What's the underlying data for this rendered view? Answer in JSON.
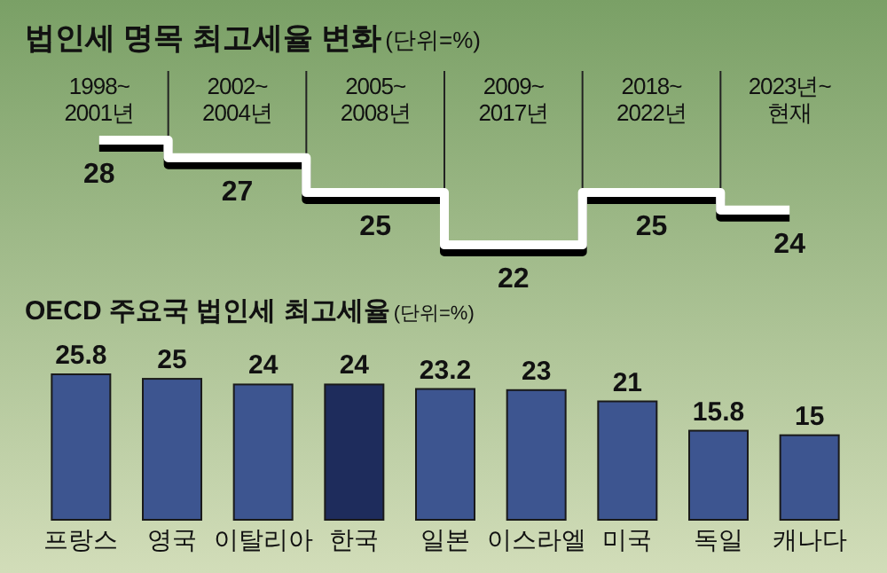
{
  "chart_data": [
    {
      "type": "step",
      "title": "법인세 명목 최고세율 변화",
      "subtitle": "(단위=%)",
      "categories": [
        "1998~2001년",
        "2002~2004년",
        "2005~2008년",
        "2009~2017년",
        "2018~2022년",
        "2023년~현재"
      ],
      "values": [
        28,
        27,
        25,
        22,
        25,
        24
      ],
      "color": "#ffffff",
      "data_labels": true
    },
    {
      "type": "bar",
      "title": "OECD 주요국 법인세 최고세율",
      "subtitle": "(단위=%)",
      "categories": [
        "프랑스",
        "영국",
        "이탈리아",
        "한국",
        "일본",
        "이스라엘",
        "미국",
        "독일",
        "캐나다"
      ],
      "values": [
        25.8,
        25,
        24,
        24,
        23.2,
        23,
        21,
        15.8,
        15
      ],
      "colors": [
        "#3d5590",
        "#3d5590",
        "#3d5590",
        "#1e2c5c",
        "#3d5590",
        "#3d5590",
        "#3d5590",
        "#3d5590",
        "#3d5590"
      ],
      "data_labels": true
    }
  ]
}
